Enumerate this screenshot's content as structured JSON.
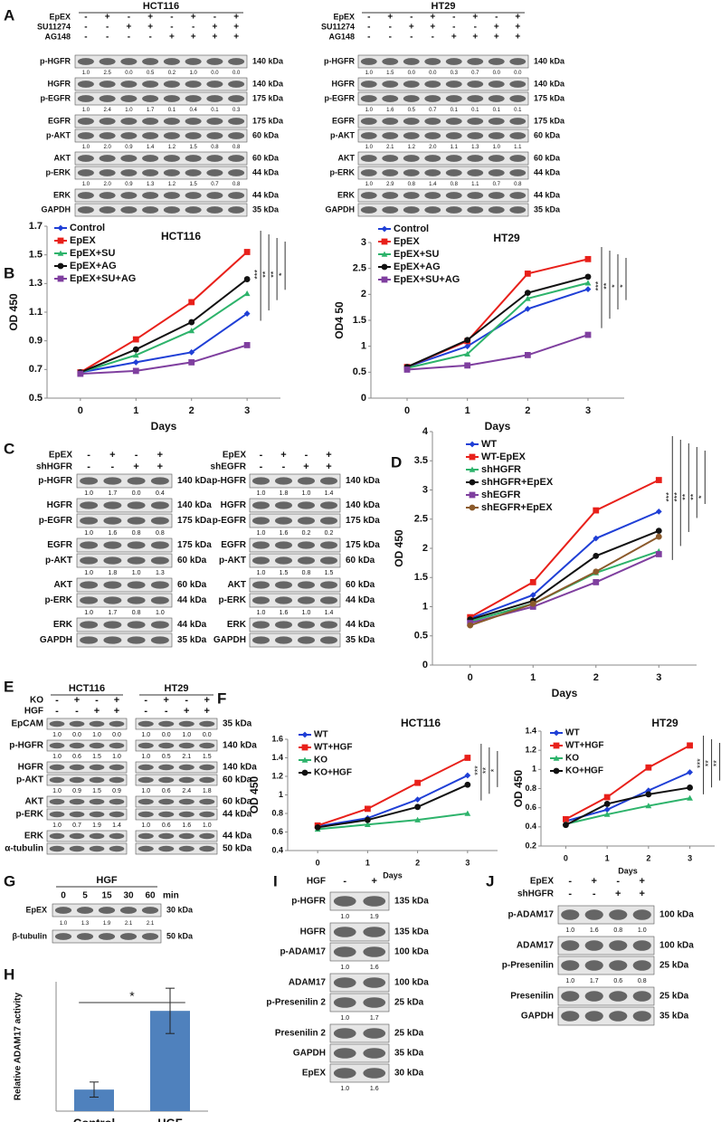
{
  "panel_labels": [
    "A",
    "B",
    "C",
    "D",
    "E",
    "F",
    "G",
    "H",
    "I",
    "J"
  ],
  "blots": [
    {
      "title": "HCT116",
      "conditions": [
        {
          "name": "EpEX",
          "signs": [
            "-",
            "+",
            "-",
            "+",
            "-",
            "+",
            "-",
            "+"
          ]
        },
        {
          "name": "SU11274",
          "signs": [
            "-",
            "-",
            "+",
            "+",
            "-",
            "-",
            "+",
            "+"
          ]
        },
        {
          "name": "AG148",
          "signs": [
            "-",
            "-",
            "-",
            "-",
            "+",
            "+",
            "+",
            "+"
          ]
        }
      ],
      "rows": [
        {
          "label": "p-HGFR",
          "kda": "140 kDa",
          "quant": [
            "1.0",
            "2.5",
            "0.0",
            "0.5",
            "0.2",
            "1.0",
            "0.0",
            "0.0"
          ]
        },
        {
          "label": "HGFR",
          "kda": "140 kDa"
        },
        {
          "label": "p-EGFR",
          "kda": "175 kDa",
          "quant": [
            "1.0",
            "2.4",
            "1.0",
            "1.7",
            "0.1",
            "0.4",
            "0.1",
            "0.3"
          ]
        },
        {
          "label": "EGFR",
          "kda": "175 kDa"
        },
        {
          "label": "p-AKT",
          "kda": "60 kDa",
          "quant": [
            "1.0",
            "2.0",
            "0.9",
            "1.4",
            "1.2",
            "1.5",
            "0.8",
            "0.8"
          ]
        },
        {
          "label": "AKT",
          "kda": "60 kDa"
        },
        {
          "label": "p-ERK",
          "kda": "44 kDa",
          "quant": [
            "1.0",
            "2.0",
            "0.9",
            "1.3",
            "1.2",
            "1.5",
            "0.7",
            "0.8"
          ]
        },
        {
          "label": "ERK",
          "kda": "44 kDa"
        },
        {
          "label": "GAPDH",
          "kda": "35 kDa"
        }
      ]
    },
    {
      "title": "HT29",
      "conditions": [
        {
          "name": "EpEX",
          "signs": [
            "-",
            "+",
            "-",
            "+",
            "-",
            "+",
            "-",
            "+"
          ]
        },
        {
          "name": "SU11274",
          "signs": [
            "-",
            "-",
            "+",
            "+",
            "-",
            "-",
            "+",
            "+"
          ]
        },
        {
          "name": "AG148",
          "signs": [
            "-",
            "-",
            "-",
            "-",
            "+",
            "+",
            "+",
            "+"
          ]
        }
      ],
      "rows": [
        {
          "label": "p-HGFR",
          "kda": "140 kDa",
          "quant": [
            "1.0",
            "1.5",
            "0.0",
            "0.0",
            "0.3",
            "0.7",
            "0.0",
            "0.0"
          ]
        },
        {
          "label": "HGFR",
          "kda": "140 kDa"
        },
        {
          "label": "p-EGFR",
          "kda": "175 kDa",
          "quant": [
            "1.0",
            "1.6",
            "0.5",
            "0.7",
            "0.1",
            "0.1",
            "0.1",
            "0.1"
          ]
        },
        {
          "label": "EGFR",
          "kda": "175 kDa"
        },
        {
          "label": "p-AKT",
          "kda": "60 kDa",
          "quant": [
            "1.0",
            "2.1",
            "1.2",
            "2.0",
            "1.1",
            "1.3",
            "1.0",
            "1.1"
          ]
        },
        {
          "label": "AKT",
          "kda": "60 kDa"
        },
        {
          "label": "p-ERK",
          "kda": "44 kDa",
          "quant": [
            "1.0",
            "2.9",
            "0.8",
            "1.4",
            "0.8",
            "1.1",
            "0.7",
            "0.8"
          ]
        },
        {
          "label": "ERK",
          "kda": "44 kDa"
        },
        {
          "label": "GAPDH",
          "kda": "35 kDa"
        }
      ]
    },
    {
      "conditions": [
        {
          "name": "EpEX",
          "signs": [
            "-",
            "+",
            "-",
            "+"
          ]
        },
        {
          "name": "shHGFR",
          "signs": [
            "-",
            "-",
            "+",
            "+"
          ]
        }
      ],
      "rows": [
        {
          "label": "p-HGFR",
          "kda": "140 kDa",
          "quant": [
            "1.0",
            "1.7",
            "0.0",
            "0.4"
          ]
        },
        {
          "label": "HGFR",
          "kda": "140 kDa"
        },
        {
          "label": "p-EGFR",
          "kda": "175 kDa",
          "quant": [
            "1.0",
            "1.6",
            "0.8",
            "0.8"
          ]
        },
        {
          "label": "EGFR",
          "kda": "175 kDa"
        },
        {
          "label": "p-AKT",
          "kda": "60 kDa",
          "quant": [
            "1.0",
            "1.8",
            "1.0",
            "1.3"
          ]
        },
        {
          "label": "AKT",
          "kda": "60 kDa"
        },
        {
          "label": "p-ERK",
          "kda": "44 kDa",
          "quant": [
            "1.0",
            "1.7",
            "0.8",
            "1.0"
          ]
        },
        {
          "label": "ERK",
          "kda": "44 kDa"
        },
        {
          "label": "GAPDH",
          "kda": "35 kDa"
        }
      ]
    },
    {
      "conditions": [
        {
          "name": "EpEX",
          "signs": [
            "-",
            "+",
            "-",
            "+"
          ]
        },
        {
          "name": "shEGFR",
          "signs": [
            "-",
            "-",
            "+",
            "+"
          ]
        }
      ],
      "rows": [
        {
          "label": "p-HGFR",
          "kda": "140 kDa",
          "quant": [
            "1.0",
            "1.8",
            "1.0",
            "1.4"
          ]
        },
        {
          "label": "HGFR",
          "kda": "140 kDa"
        },
        {
          "label": "p-EGFR",
          "kda": "175 kDa",
          "quant": [
            "1.0",
            "1.6",
            "0.2",
            "0.2"
          ]
        },
        {
          "label": "EGFR",
          "kda": "175 kDa"
        },
        {
          "label": "p-AKT",
          "kda": "60 kDa",
          "quant": [
            "1.0",
            "1.5",
            "0.8",
            "1.5"
          ]
        },
        {
          "label": "AKT",
          "kda": "60 kDa"
        },
        {
          "label": "p-ERK",
          "kda": "44 kDa",
          "quant": [
            "1.0",
            "1.6",
            "1.0",
            "1.4"
          ]
        },
        {
          "label": "ERK",
          "kda": "44 kDa"
        },
        {
          "label": "GAPDH",
          "kda": "35 kDa"
        }
      ]
    },
    {
      "title": "HCT116",
      "conditions": [
        {
          "name": "KO",
          "signs": [
            "-",
            "+",
            "-",
            "+"
          ]
        },
        {
          "name": "HGF",
          "signs": [
            "-",
            "-",
            "+",
            "+"
          ]
        }
      ],
      "rows": [
        {
          "label": "EpCAM",
          "quant": [
            "1.0",
            "0.0",
            "1.0",
            "0.0"
          ]
        },
        {
          "label": "p-HGFR",
          "quant": [
            "1.0",
            "0.6",
            "1.5",
            "1.0"
          ]
        },
        {
          "label": "HGFR"
        },
        {
          "label": "p-AKT",
          "quant": [
            "1.0",
            "0.9",
            "1.5",
            "0.9"
          ]
        },
        {
          "label": "AKT"
        },
        {
          "label": "p-ERK",
          "quant": [
            "1.0",
            "0.7",
            "1.9",
            "1.4"
          ]
        },
        {
          "label": "ERK"
        },
        {
          "label": "α-tubulin"
        }
      ]
    },
    {
      "title": "HT29",
      "conditions": [
        {
          "signs": [
            "-",
            "+",
            "-",
            "+"
          ]
        },
        {
          "signs": [
            "-",
            "-",
            "+",
            "+"
          ]
        }
      ],
      "rows": [
        {
          "kda": "35 kDa",
          "quant": [
            "1.0",
            "0.0",
            "1.0",
            "0.0"
          ]
        },
        {
          "kda": "140 kDa",
          "quant": [
            "1.0",
            "0.5",
            "2.1",
            "1.5"
          ]
        },
        {
          "kda": "140 kDa"
        },
        {
          "kda": "60 kDa",
          "quant": [
            "1.0",
            "0.6",
            "2.4",
            "1.8"
          ]
        },
        {
          "kda": "60 kDa"
        },
        {
          "kda": "44 kDa",
          "quant": [
            "1.0",
            "0.6",
            "1.6",
            "1.0"
          ]
        },
        {
          "kda": "44 kDa"
        },
        {
          "kda": "50 kDa"
        }
      ]
    },
    {
      "title": "HGF",
      "lanes": [
        "0",
        "5",
        "15",
        "30",
        "60"
      ],
      "lane_unit": "min",
      "rows": [
        {
          "label": "EpEX",
          "kda": "30 kDa",
          "quant": [
            "1.0",
            "1.3",
            "1.9",
            "2.1",
            "2.1"
          ]
        },
        {
          "label": "β-tubulin",
          "kda": "50 kDa"
        }
      ]
    },
    {
      "conditions": [
        {
          "name": "HGF",
          "signs": [
            "-",
            "+"
          ]
        }
      ],
      "rows": [
        {
          "label": "p-HGFR",
          "kda": "135 kDa",
          "quant": [
            "1.0",
            "1.9"
          ]
        },
        {
          "label": "HGFR",
          "kda": "135 kDa"
        },
        {
          "label": "p-ADAM17",
          "kda": "100 kDa",
          "quant": [
            "1.0",
            "1.6"
          ]
        },
        {
          "label": "ADAM17",
          "kda": "100 kDa"
        },
        {
          "label": "p-Presenilin 2",
          "kda": "25 kDa",
          "quant": [
            "1.0",
            "1.7"
          ]
        },
        {
          "label": "Presenilin 2",
          "kda": "25 kDa"
        },
        {
          "label": "GAPDH",
          "kda": "35 kDa"
        },
        {
          "label": "EpEX",
          "kda": "30 kDa",
          "quant": [
            "1.0",
            "1.6"
          ]
        }
      ]
    },
    {
      "conditions": [
        {
          "name": "EpEX",
          "signs": [
            "-",
            "+",
            "-",
            "+"
          ]
        },
        {
          "name": "shHGFR",
          "signs": [
            "-",
            "-",
            "+",
            "+"
          ]
        }
      ],
      "rows": [
        {
          "label": "p-ADAM17",
          "kda": "100 kDa",
          "quant": [
            "1.0",
            "1.6",
            "0.8",
            "1.0"
          ]
        },
        {
          "label": "ADAM17",
          "kda": "100 kDa"
        },
        {
          "label": "p-Presenilin",
          "kda": "25 kDa",
          "quant": [
            "1.0",
            "1.7",
            "0.6",
            "0.8"
          ]
        },
        {
          "label": "Presenilin",
          "kda": "25 kDa"
        },
        {
          "label": "GAPDH",
          "kda": "35 kDa"
        }
      ]
    }
  ],
  "chart_data": [
    {
      "type": "line",
      "title": "HCT116",
      "x_label": "Days",
      "y_label": "OD 450",
      "x": [
        0,
        1,
        2,
        3
      ],
      "xlim": [
        -0.6,
        3.6
      ],
      "xticks": [
        0,
        1,
        2,
        3
      ],
      "ylim": [
        0.5,
        1.7
      ],
      "yticks": [
        0.5,
        0.7,
        0.9,
        1.1,
        1.3,
        1.5,
        1.7
      ],
      "series": [
        {
          "name": "Control",
          "color": "#1f3fd6",
          "values": [
            0.68,
            0.75,
            0.82,
            1.09
          ]
        },
        {
          "name": "EpEX",
          "color": "#e8201a",
          "values": [
            0.68,
            0.91,
            1.17,
            1.52
          ]
        },
        {
          "name": "EpEX+SU",
          "color": "#2db36b",
          "values": [
            0.68,
            0.8,
            0.97,
            1.23
          ]
        },
        {
          "name": "EpEX+AG",
          "color": "#111111",
          "values": [
            0.68,
            0.84,
            1.03,
            1.33
          ]
        },
        {
          "name": "EpEX+SU+AG",
          "color": "#7f3f9f",
          "values": [
            0.67,
            0.69,
            0.75,
            0.87
          ]
        }
      ],
      "annotations": [
        "***",
        "**",
        "**",
        "*"
      ]
    },
    {
      "type": "line",
      "title": "HT29",
      "x_label": "Days",
      "y_label": "OD4 50",
      "x": [
        0,
        1,
        2,
        3
      ],
      "xlim": [
        -0.6,
        3.6
      ],
      "xticks": [
        0,
        1,
        2,
        3
      ],
      "ylim": [
        0,
        3
      ],
      "yticks": [
        0,
        0.5,
        1,
        1.5,
        2,
        2.5,
        3
      ],
      "series": [
        {
          "name": "Control",
          "color": "#1f3fd6",
          "values": [
            0.6,
            1.0,
            1.72,
            2.1
          ]
        },
        {
          "name": "EpEX",
          "color": "#e8201a",
          "values": [
            0.6,
            1.1,
            2.4,
            2.68
          ]
        },
        {
          "name": "EpEX+SU",
          "color": "#2db36b",
          "values": [
            0.58,
            0.85,
            1.92,
            2.22
          ]
        },
        {
          "name": "EpEX+AG",
          "color": "#111111",
          "values": [
            0.6,
            1.12,
            2.03,
            2.34
          ]
        },
        {
          "name": "EpEX+SU+AG",
          "color": "#7f3f9f",
          "values": [
            0.55,
            0.63,
            0.83,
            1.22
          ]
        }
      ],
      "annotations": [
        "***",
        "**",
        "*",
        "*"
      ]
    },
    {
      "type": "line",
      "x_label": "Days",
      "y_label": "OD 450",
      "x": [
        0,
        1,
        2,
        3
      ],
      "xlim": [
        -0.6,
        3.6
      ],
      "xticks": [
        0,
        1,
        2,
        3
      ],
      "ylim": [
        0,
        4
      ],
      "yticks": [
        0,
        0.5,
        1,
        1.5,
        2,
        2.5,
        3,
        3.5,
        4
      ],
      "series": [
        {
          "name": "WT",
          "color": "#1f3fd6",
          "values": [
            0.8,
            1.2,
            2.17,
            2.63
          ]
        },
        {
          "name": "WT-EpEX",
          "color": "#e8201a",
          "values": [
            0.82,
            1.42,
            2.65,
            3.17
          ]
        },
        {
          "name": "shHGFR",
          "color": "#2db36b",
          "values": [
            0.75,
            1.05,
            1.58,
            1.95
          ]
        },
        {
          "name": "shHGFR+EpEX",
          "color": "#111111",
          "values": [
            0.78,
            1.1,
            1.87,
            2.3
          ]
        },
        {
          "name": "shEGFR",
          "color": "#7f3f9f",
          "values": [
            0.72,
            1.0,
            1.42,
            1.9
          ]
        },
        {
          "name": "shEGFR+EpEX",
          "color": "#8b5a2b",
          "values": [
            0.68,
            1.05,
            1.6,
            2.2
          ]
        }
      ],
      "annotations": [
        "***",
        "***",
        "**",
        "**",
        "*"
      ]
    },
    {
      "type": "line",
      "title": "HCT116",
      "x_label": "Days",
      "y_label": "OD 450",
      "x": [
        0,
        1,
        2,
        3
      ],
      "xlim": [
        -0.6,
        3.6
      ],
      "xticks": [
        0,
        1,
        2,
        3
      ],
      "ylim": [
        0.4,
        1.6
      ],
      "yticks": [
        0.4,
        0.6,
        0.8,
        1,
        1.2,
        1.4,
        1.6
      ],
      "series": [
        {
          "name": "WT",
          "color": "#1f3fd6",
          "values": [
            0.66,
            0.75,
            0.95,
            1.21
          ]
        },
        {
          "name": "WT+HGF",
          "color": "#e8201a",
          "values": [
            0.67,
            0.85,
            1.13,
            1.4
          ]
        },
        {
          "name": "KO",
          "color": "#2db36b",
          "values": [
            0.63,
            0.68,
            0.73,
            0.8
          ]
        },
        {
          "name": "KO+HGF",
          "color": "#111111",
          "values": [
            0.65,
            0.73,
            0.87,
            1.11
          ]
        }
      ],
      "annotations": [
        "***",
        "**",
        "*"
      ]
    },
    {
      "type": "line",
      "title": "HT29",
      "x_label": "Days",
      "y_label": "OD 450",
      "x": [
        0,
        1,
        2,
        3
      ],
      "xlim": [
        -0.6,
        3.6
      ],
      "xticks": [
        0,
        1,
        2,
        3
      ],
      "ylim": [
        0.2,
        1.4
      ],
      "yticks": [
        0.2,
        0.4,
        0.6,
        0.8,
        1,
        1.2,
        1.4
      ],
      "series": [
        {
          "name": "WT",
          "color": "#1f3fd6",
          "values": [
            0.46,
            0.58,
            0.78,
            0.97
          ]
        },
        {
          "name": "WT+HGF",
          "color": "#e8201a",
          "values": [
            0.48,
            0.71,
            1.02,
            1.25
          ]
        },
        {
          "name": "KO",
          "color": "#2db36b",
          "values": [
            0.43,
            0.53,
            0.62,
            0.7
          ]
        },
        {
          "name": "KO+HGF",
          "color": "#111111",
          "values": [
            0.42,
            0.64,
            0.74,
            0.81
          ]
        }
      ],
      "annotations": [
        "***",
        "**",
        "**"
      ]
    },
    {
      "type": "bar",
      "y_label": "Relative ADAM17 activity",
      "categories": [
        "Control",
        "HGF"
      ],
      "values": [
        1.0,
        4.65
      ],
      "errors": [
        0.35,
        1.05
      ],
      "color": "#4f81bd",
      "ylim": [
        0,
        6
      ],
      "annotations": [
        "*"
      ]
    }
  ]
}
